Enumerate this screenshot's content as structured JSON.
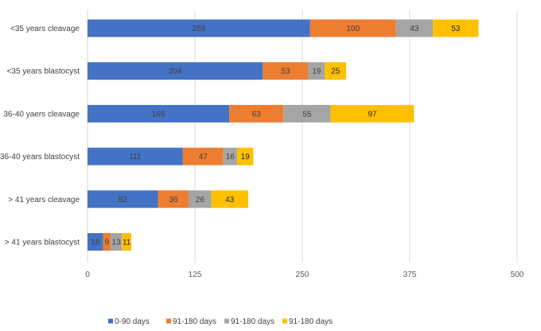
{
  "chart_data": {
    "type": "bar",
    "orientation": "horizontal",
    "stacked": true,
    "title": "",
    "xlabel": "",
    "ylabel": "",
    "xlim": [
      0,
      500
    ],
    "xticks": [
      0,
      125,
      250,
      375,
      500
    ],
    "tick_labels": [
      "0",
      "125",
      "250",
      "375",
      "500"
    ],
    "grid": true,
    "legend_position": "bottom",
    "categories": [
      "<35 years cleavage",
      "<35 years blastocyst",
      "36-40 yaers cleavage",
      "36-40 years blastocyst",
      "> 41 years cleavage",
      "> 41 years blastocyst"
    ],
    "series": [
      {
        "name": "0-90 days",
        "color": "#4472C4",
        "label_color": "#404040",
        "values": [
          259,
          204,
          165,
          111,
          82,
          18
        ]
      },
      {
        "name": "91-180 days",
        "color": "#ED7D31",
        "label_color": "#404040",
        "values": [
          100,
          53,
          63,
          47,
          36,
          9
        ]
      },
      {
        "name": "91-180 days",
        "color": "#A5A5A5",
        "label_color": "#404040",
        "values": [
          43,
          19,
          55,
          16,
          26,
          13
        ]
      },
      {
        "name": "91-180 days",
        "color": "#FFC000",
        "label_color": "#262626",
        "values": [
          53,
          25,
          97,
          19,
          43,
          11
        ]
      }
    ]
  }
}
